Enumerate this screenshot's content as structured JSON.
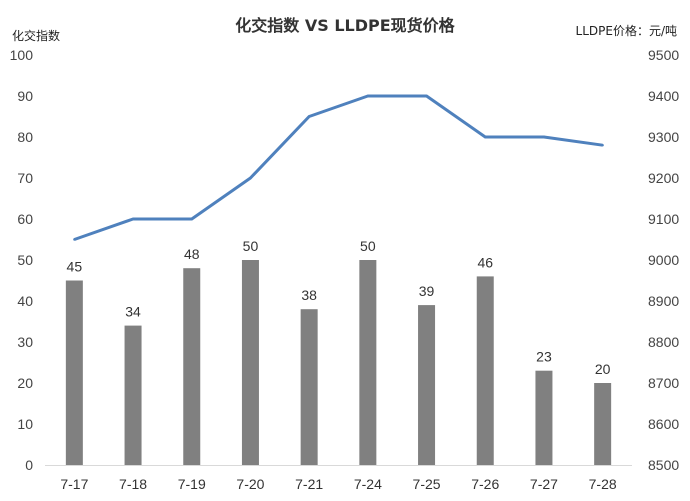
{
  "chart_data": {
    "type": "bar",
    "title": "化交指数 VS LLDPE现货价格",
    "ylabel": "化交指数",
    "y2label": "LLDPE价格：元/吨",
    "categories": [
      "7-17",
      "7-18",
      "7-19",
      "7-20",
      "7-21",
      "7-24",
      "7-25",
      "7-26",
      "7-27",
      "7-28"
    ],
    "ylim": [
      0,
      100
    ],
    "y2lim": [
      8500,
      9500
    ],
    "yticks": [
      "0",
      "10",
      "20",
      "30",
      "40",
      "50",
      "60",
      "70",
      "80",
      "90",
      "100"
    ],
    "y2ticks": [
      "8500",
      "8600",
      "8700",
      "8800",
      "8900",
      "9000",
      "9100",
      "9200",
      "9300",
      "9400",
      "9500"
    ],
    "grid": false,
    "series": [
      {
        "type": "bar",
        "axis": "left",
        "color": "#808080",
        "values": [
          45,
          34,
          48,
          50,
          38,
          50,
          39,
          46,
          23,
          20
        ]
      },
      {
        "type": "line",
        "axis": "right",
        "color": "#4F81BD",
        "values": [
          9050,
          9100,
          9100,
          9200,
          9350,
          9400,
          9400,
          9300,
          9300,
          9280
        ]
      }
    ]
  }
}
